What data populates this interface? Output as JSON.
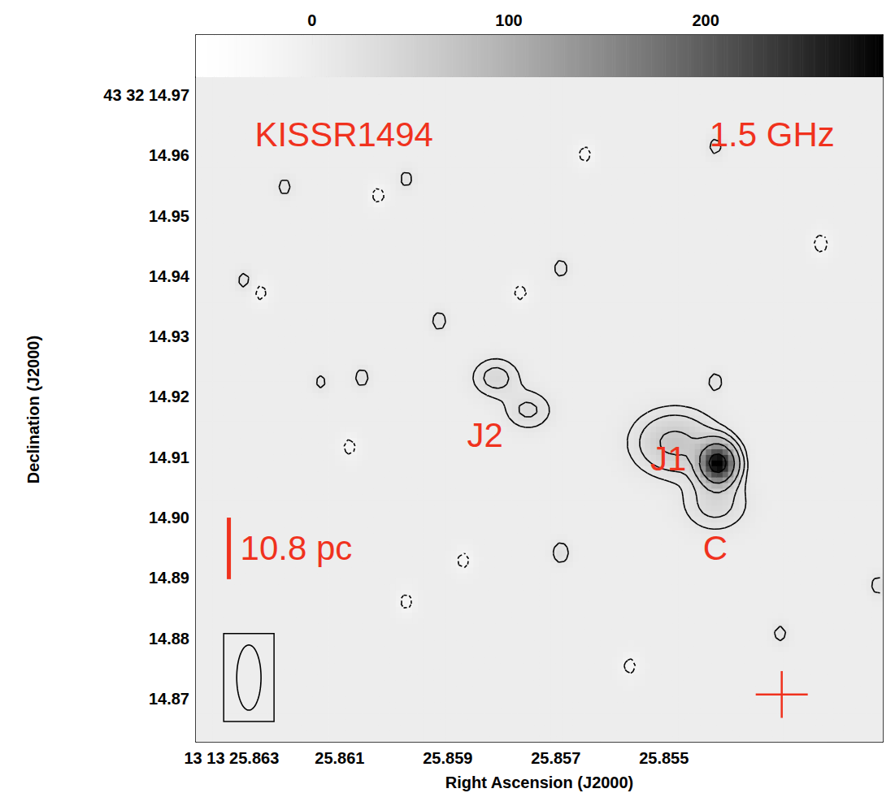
{
  "chart_data": {
    "type": "contour",
    "xlabel": "Right Ascension (J2000)",
    "ylabel": "Declination (J2000)",
    "xlim": [
      25.86366,
      25.85095
    ],
    "xticks": [
      {
        "value": 25.863,
        "label": "13 13 25.863"
      },
      {
        "value": 25.861,
        "label": "25.861"
      },
      {
        "value": 25.859,
        "label": "25.859"
      },
      {
        "value": 25.857,
        "label": "25.857"
      },
      {
        "value": 25.855,
        "label": "25.855"
      }
    ],
    "ylim": [
      14.86286,
      14.97296
    ],
    "yticks": [
      {
        "value": 14.97,
        "label": "43 32 14.97"
      },
      {
        "value": 14.96,
        "label": "14.96"
      },
      {
        "value": 14.95,
        "label": "14.95"
      },
      {
        "value": 14.94,
        "label": "14.94"
      },
      {
        "value": 14.93,
        "label": "14.93"
      },
      {
        "value": 14.92,
        "label": "14.92"
      },
      {
        "value": 14.91,
        "label": "14.91"
      },
      {
        "value": 14.9,
        "label": "14.90"
      },
      {
        "value": 14.89,
        "label": "14.89"
      },
      {
        "value": 14.88,
        "label": "14.88"
      },
      {
        "value": 14.87,
        "label": "14.87"
      }
    ],
    "colorbar": {
      "lim": [
        -59,
        290
      ],
      "ticks": [
        0,
        100,
        200
      ]
    },
    "contour_levels": [
      -15,
      15,
      30,
      60,
      120,
      240
    ],
    "components": [
      {
        "x": 25.854,
        "y": 14.909,
        "peak": 290,
        "sigma_x": 0.00022,
        "sigma_y": 0.0022
      },
      {
        "x": 25.8548,
        "y": 14.9124,
        "peak": 70,
        "sigma_x": 0.0005,
        "sigma_y": 0.0035
      },
      {
        "x": 25.85405,
        "y": 14.9023,
        "peak": 40,
        "sigma_x": 0.0004,
        "sigma_y": 0.003
      },
      {
        "x": 25.85811,
        "y": 14.9232,
        "peak": 40,
        "sigma_x": 0.0003,
        "sigma_y": 0.0022
      },
      {
        "x": 25.85751,
        "y": 14.9178,
        "peak": 35,
        "sigma_x": 0.0003,
        "sigma_y": 0.0022
      },
      {
        "x": 25.86202,
        "y": 14.9548,
        "peak": 22,
        "sigma_x": 0.00012,
        "sigma_y": 0.0014
      },
      {
        "x": 25.85977,
        "y": 14.9561,
        "peak": 22,
        "sigma_x": 0.00012,
        "sigma_y": 0.0014
      },
      {
        "x": 25.86029,
        "y": 14.9534,
        "peak": -22,
        "sigma_x": 0.00012,
        "sigma_y": 0.0014
      },
      {
        "x": 25.85691,
        "y": 14.9413,
        "peak": 24,
        "sigma_x": 0.00012,
        "sigma_y": 0.0014
      },
      {
        "x": 25.85766,
        "y": 14.9373,
        "peak": -22,
        "sigma_x": 0.00012,
        "sigma_y": 0.0014
      },
      {
        "x": 25.85916,
        "y": 14.9326,
        "peak": 25,
        "sigma_x": 0.00012,
        "sigma_y": 0.0014
      },
      {
        "x": 25.86059,
        "y": 14.9232,
        "peak": 24,
        "sigma_x": 0.00012,
        "sigma_y": 0.0014
      },
      {
        "x": 25.86135,
        "y": 14.9225,
        "peak": 20,
        "sigma_x": 0.00012,
        "sigma_y": 0.0014
      },
      {
        "x": 25.86082,
        "y": 14.9117,
        "peak": -22,
        "sigma_x": 0.00012,
        "sigma_y": 0.0014
      },
      {
        "x": 25.85691,
        "y": 14.8942,
        "peak": 30,
        "sigma_x": 0.00012,
        "sigma_y": 0.0014
      },
      {
        "x": 25.85871,
        "y": 14.8929,
        "peak": -22,
        "sigma_x": 0.00012,
        "sigma_y": 0.0014
      },
      {
        "x": 25.85977,
        "y": 14.8861,
        "peak": -22,
        "sigma_x": 0.00012,
        "sigma_y": 0.0014
      },
      {
        "x": 25.85563,
        "y": 14.8754,
        "peak": -22,
        "sigma_x": 0.00012,
        "sigma_y": 0.0014
      },
      {
        "x": 25.85285,
        "y": 14.8808,
        "peak": 22,
        "sigma_x": 0.00012,
        "sigma_y": 0.0014
      },
      {
        "x": 25.8521,
        "y": 14.9454,
        "peak": -25,
        "sigma_x": 0.00012,
        "sigma_y": 0.0014
      },
      {
        "x": 25.86277,
        "y": 14.9393,
        "peak": 22,
        "sigma_x": 0.00012,
        "sigma_y": 0.0014
      },
      {
        "x": 25.85104,
        "y": 14.8888,
        "peak": 24,
        "sigma_x": 0.00012,
        "sigma_y": 0.0014
      },
      {
        "x": 25.85405,
        "y": 14.9225,
        "peak": 24,
        "sigma_x": 0.00012,
        "sigma_y": 0.0014
      },
      {
        "x": 25.85646,
        "y": 14.9602,
        "peak": -22,
        "sigma_x": 0.00012,
        "sigma_y": 0.0014
      },
      {
        "x": 25.86247,
        "y": 14.9373,
        "peak": -22,
        "sigma_x": 0.00012,
        "sigma_y": 0.0014
      },
      {
        "x": 25.85405,
        "y": 14.9615,
        "peak": 22,
        "sigma_x": 0.00012,
        "sigma_y": 0.0014
      }
    ],
    "annotations": [
      {
        "text": "KISSR1494",
        "x": 25.86092,
        "y": 14.9635
      },
      {
        "text": "1.5 GHz",
        "x": 25.853,
        "y": 14.9635
      },
      {
        "text": "J2",
        "x": 25.85831,
        "y": 14.9137
      },
      {
        "text": "J1",
        "x": 25.85492,
        "y": 14.9097
      },
      {
        "text": "C",
        "x": 25.85405,
        "y": 14.8949
      }
    ],
    "scale_bar": {
      "label": "10.8 pc",
      "x": 25.86305,
      "y": [
        14.8898,
        14.9
      ]
    },
    "beam": {
      "x": 25.86268,
      "y": 14.8735,
      "width": 0.00045,
      "height": 0.0108
    },
    "markers": [
      {
        "x": 25.85282,
        "y": 14.8707,
        "marker": "cross"
      }
    ],
    "color": "#f0321e",
    "grid": false
  }
}
